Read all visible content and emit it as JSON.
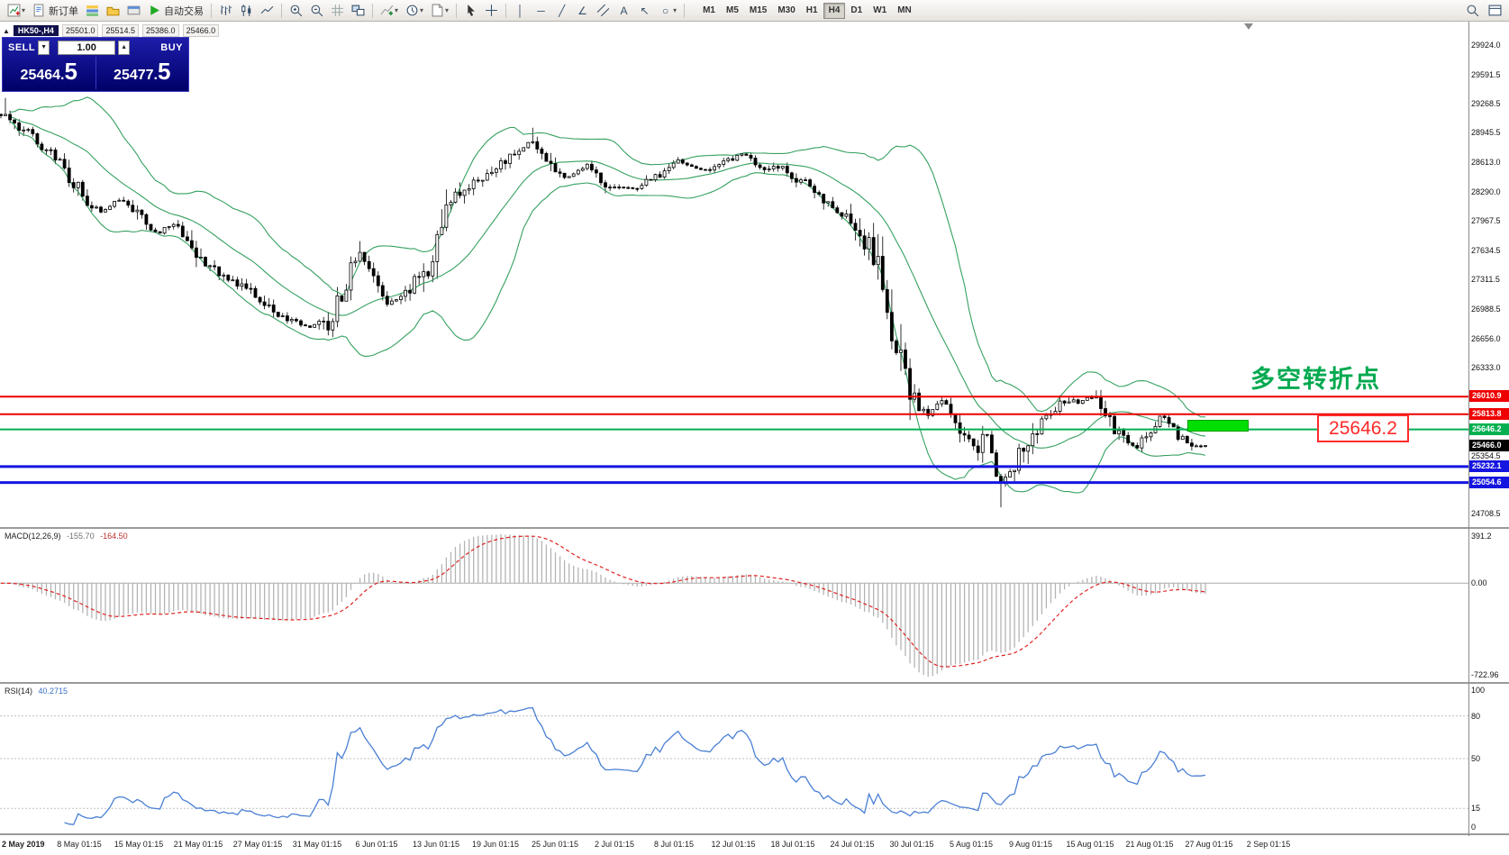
{
  "toolbar": {
    "new_order": "新订单",
    "autotrading": "自动交易",
    "timeframes": [
      "M1",
      "M5",
      "M15",
      "M30",
      "H1",
      "H4",
      "D1",
      "W1",
      "MN"
    ],
    "active_timeframe": "H4"
  },
  "chart_header": {
    "symbol": "HK50-,H4",
    "open": "25501.0",
    "high": "25514.5",
    "low": "25386.0",
    "close": "25466.0"
  },
  "trade_panel": {
    "sell_label": "SELL",
    "buy_label": "BUY",
    "volume": "1.00",
    "sell_price": "25464.",
    "sell_price_big": "5",
    "buy_price": "25477.",
    "buy_price_big": "5"
  },
  "annotations": {
    "turning_point": "多空转折点",
    "price_callout": "25646.2"
  },
  "colors": {
    "band": "#35A060",
    "level_red": "#ee0000",
    "level_green": "#00b050",
    "level_blue": "#1515e0",
    "current_chip": "#000000",
    "macd_hist": "#b4b4b4",
    "macd_signal": "#e02020",
    "rsi_line": "#4a7fd4",
    "highlight_green": "#00df00",
    "annotation_green": "#00A94F"
  },
  "chart_data": {
    "type": "candlestick",
    "symbol": "HK50-",
    "timeframe": "H4",
    "price_range": [
      24560,
      30180
    ],
    "price_axis_ticks": [
      "29924.0",
      "29591.5",
      "29268.5",
      "28945.5",
      "28613.0",
      "28290.0",
      "27967.5",
      "27634.5",
      "27311.5",
      "26988.5",
      "26656.0",
      "26333.0",
      "25354.5",
      "24708.5"
    ],
    "level_lines": [
      {
        "price": 26010.9,
        "label": "26010.9",
        "color": "#ee0000",
        "width": 2
      },
      {
        "price": 25813.8,
        "label": "25813.8",
        "color": "#ee0000",
        "width": 2
      },
      {
        "price": 25646.2,
        "label": "25646.2",
        "color": "#00b050",
        "width": 2
      },
      {
        "price": 25232.1,
        "label": "25232.1",
        "color": "#1515e0",
        "width": 3
      },
      {
        "price": 25054.6,
        "label": "25054.6",
        "color": "#1515e0",
        "width": 3
      }
    ],
    "current_price": {
      "value": 25466.0,
      "label": "25466.0"
    },
    "candle_count": 266,
    "bollinger_period": 20,
    "bollinger_deviation": 2,
    "price_keyframes": [
      [
        0.0,
        29150
      ],
      [
        0.012,
        29020
      ],
      [
        0.025,
        28900
      ],
      [
        0.04,
        28760
      ],
      [
        0.055,
        28500
      ],
      [
        0.07,
        28220
      ],
      [
        0.085,
        28060
      ],
      [
        0.1,
        28230
      ],
      [
        0.115,
        27990
      ],
      [
        0.13,
        27820
      ],
      [
        0.145,
        27960
      ],
      [
        0.16,
        27640
      ],
      [
        0.175,
        27450
      ],
      [
        0.195,
        27300
      ],
      [
        0.215,
        27080
      ],
      [
        0.235,
        26880
      ],
      [
        0.255,
        26780
      ],
      [
        0.275,
        26850
      ],
      [
        0.29,
        27420
      ],
      [
        0.298,
        27640
      ],
      [
        0.308,
        27330
      ],
      [
        0.322,
        27030
      ],
      [
        0.338,
        27140
      ],
      [
        0.353,
        27430
      ],
      [
        0.368,
        28020
      ],
      [
        0.383,
        28320
      ],
      [
        0.402,
        28470
      ],
      [
        0.422,
        28640
      ],
      [
        0.44,
        28860
      ],
      [
        0.455,
        28600
      ],
      [
        0.47,
        28440
      ],
      [
        0.486,
        28590
      ],
      [
        0.503,
        28370
      ],
      [
        0.523,
        28320
      ],
      [
        0.543,
        28430
      ],
      [
        0.563,
        28630
      ],
      [
        0.583,
        28520
      ],
      [
        0.601,
        28620
      ],
      [
        0.618,
        28730
      ],
      [
        0.633,
        28510
      ],
      [
        0.648,
        28560
      ],
      [
        0.663,
        28420
      ],
      [
        0.68,
        28240
      ],
      [
        0.698,
        28060
      ],
      [
        0.713,
        27890
      ],
      [
        0.726,
        27520
      ],
      [
        0.738,
        26900
      ],
      [
        0.75,
        26220
      ],
      [
        0.76,
        25920
      ],
      [
        0.77,
        25780
      ],
      [
        0.78,
        25950
      ],
      [
        0.79,
        25830
      ],
      [
        0.8,
        25570
      ],
      [
        0.81,
        25430
      ],
      [
        0.82,
        25580
      ],
      [
        0.828,
        25060
      ],
      [
        0.836,
        25130
      ],
      [
        0.845,
        25340
      ],
      [
        0.855,
        25550
      ],
      [
        0.865,
        25710
      ],
      [
        0.875,
        25890
      ],
      [
        0.885,
        25980
      ],
      [
        0.895,
        25930
      ],
      [
        0.905,
        26030
      ],
      [
        0.915,
        25870
      ],
      [
        0.925,
        25660
      ],
      [
        0.935,
        25480
      ],
      [
        0.944,
        25440
      ],
      [
        0.954,
        25640
      ],
      [
        0.964,
        25800
      ],
      [
        0.974,
        25620
      ],
      [
        0.984,
        25480
      ],
      [
        1.0,
        25466
      ]
    ],
    "spike_highs": [
      [
        0.004,
        29330
      ],
      [
        0.297,
        27740
      ],
      [
        0.443,
        29000
      ]
    ],
    "spike_lows": [
      [
        0.832,
        24780
      ]
    ],
    "macd": {
      "label": "MACD(12,26,9)",
      "value_main": "-155.70",
      "value_signal": "-164.50",
      "axis_max": "391.2",
      "axis_zero": "0.00",
      "axis_min": "-722.96"
    },
    "rsi": {
      "label": "RSI(14)",
      "value": "40.2715",
      "levels": [
        80,
        50,
        15
      ],
      "axis_values": [
        100,
        80,
        50,
        15,
        0
      ],
      "axis_labels": [
        "100",
        "80",
        "50",
        "15",
        "0"
      ]
    },
    "time_labels": [
      "2 May 2019",
      "8 May 01:15",
      "15 May 01:15",
      "21 May 01:15",
      "27 May 01:15",
      "31 May 01:15",
      "6 Jun 01:15",
      "13 Jun 01:15",
      "19 Jun 01:15",
      "25 Jun 01:15",
      "2 Jul 01:15",
      "8 Jul 01:15",
      "12 Jul 01:15",
      "18 Jul 01:15",
      "24 Jul 01:15",
      "30 Jul 01:15",
      "5 Aug 01:15",
      "9 Aug 01:15",
      "15 Aug 01:15",
      "21 Aug 01:15",
      "27 Aug 01:15",
      "2 Sep 01:15"
    ]
  }
}
